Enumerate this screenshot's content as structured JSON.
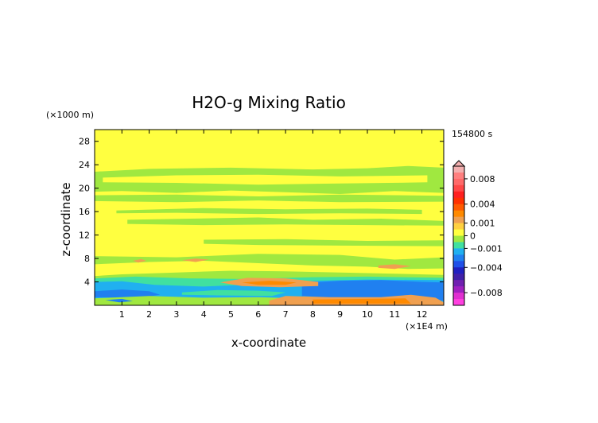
{
  "chart_data": {
    "type": "heatmap",
    "title": "H2O-g Mixing Ratio",
    "xlabel": "x-coordinate",
    "ylabel": "z-coordinate",
    "x_unit_label": "(×1E4 m)",
    "y_unit_label": "(×1000 m)",
    "time_label": "154800 s",
    "xlim": [
      0,
      12.8
    ],
    "ylim": [
      0,
      30
    ],
    "x_ticks": [
      1,
      2,
      3,
      4,
      5,
      6,
      7,
      8,
      9,
      10,
      11,
      12
    ],
    "y_ticks": [
      4,
      8,
      12,
      16,
      20,
      24,
      28
    ],
    "colorbar": {
      "tick_labels": [
        "0.008",
        "0.004",
        "0.001",
        "0",
        "−0.001",
        "−0.004",
        "−0.008"
      ],
      "tick_values": [
        0.008,
        0.004,
        0.001,
        0,
        -0.001,
        -0.004,
        -0.008
      ],
      "levels": [
        {
          "min": 0.009,
          "max": 0.01,
          "color": "#f4b0b0"
        },
        {
          "min": 0.008,
          "max": 0.009,
          "color": "#ff8080"
        },
        {
          "min": 0.007,
          "max": 0.008,
          "color": "#ff6a6a"
        },
        {
          "min": 0.006,
          "max": 0.007,
          "color": "#ff4848"
        },
        {
          "min": 0.005,
          "max": 0.006,
          "color": "#ff2020"
        },
        {
          "min": 0.004,
          "max": 0.005,
          "color": "#ff3000"
        },
        {
          "min": 0.003,
          "max": 0.004,
          "color": "#ff5a00"
        },
        {
          "min": 0.002,
          "max": 0.003,
          "color": "#ff8a00"
        },
        {
          "min": 0.001,
          "max": 0.002,
          "color": "#f0a050"
        },
        {
          "min": 0.0005,
          "max": 0.001,
          "color": "#ffd040"
        },
        {
          "min": 0,
          "max": 0.0005,
          "color": "#ffff40"
        },
        {
          "min": -0.0005,
          "max": 0,
          "color": "#a0e840"
        },
        {
          "min": -0.001,
          "max": -0.0005,
          "color": "#40e0a0"
        },
        {
          "min": -0.002,
          "max": -0.001,
          "color": "#20b0f0"
        },
        {
          "min": -0.003,
          "max": -0.002,
          "color": "#2080f0"
        },
        {
          "min": -0.004,
          "max": -0.003,
          "color": "#2050e8"
        },
        {
          "min": -0.005,
          "max": -0.004,
          "color": "#2020c0"
        },
        {
          "min": -0.006,
          "max": -0.005,
          "color": "#4020a8"
        },
        {
          "min": -0.007,
          "max": -0.006,
          "color": "#7020b0"
        },
        {
          "min": -0.008,
          "max": -0.007,
          "color": "#a020c0"
        },
        {
          "min": -0.009,
          "max": -0.008,
          "color": "#e030d0"
        },
        {
          "min": -0.01,
          "max": -0.009,
          "color": "#ff40e0"
        }
      ]
    },
    "field_colors": {
      "yellow": "#ffff40",
      "green": "#a0e840",
      "cyan": "#40e0a0",
      "light_blue": "#20b0f0",
      "blue": "#2080f0",
      "orange": "#f0a050",
      "dark_orange": "#ff8a00"
    },
    "regions": [
      {
        "color": "green",
        "points": [
          [
            0,
            22.8
          ],
          [
            2,
            23.3
          ],
          [
            5,
            23.5
          ],
          [
            8,
            23.2
          ],
          [
            10,
            23.4
          ],
          [
            11.5,
            23.8
          ],
          [
            12.8,
            23.5
          ],
          [
            12.8,
            19.2
          ],
          [
            11,
            19.5
          ],
          [
            9,
            19.0
          ],
          [
            7,
            19.3
          ],
          [
            5,
            19.6
          ],
          [
            3,
            19.2
          ],
          [
            1,
            19.5
          ],
          [
            0,
            19.4
          ]
        ]
      },
      {
        "color": "yellow",
        "points": [
          [
            0.3,
            21.8
          ],
          [
            3,
            22.2
          ],
          [
            6,
            22.3
          ],
          [
            9,
            22.0
          ],
          [
            12.2,
            22.2
          ],
          [
            12.2,
            21.0
          ],
          [
            9,
            20.8
          ],
          [
            6,
            20.6
          ],
          [
            3,
            20.9
          ],
          [
            0.3,
            21.0
          ]
        ]
      },
      {
        "color": "green",
        "points": [
          [
            0,
            18.8
          ],
          [
            3,
            18.9
          ],
          [
            6,
            18.6
          ],
          [
            9,
            18.9
          ],
          [
            12.8,
            18.7
          ],
          [
            12.8,
            17.7
          ],
          [
            9,
            17.6
          ],
          [
            6,
            17.9
          ],
          [
            3,
            17.6
          ],
          [
            0,
            17.8
          ]
        ]
      },
      {
        "color": "green",
        "points": [
          [
            0.8,
            16.2
          ],
          [
            4,
            16.6
          ],
          [
            7,
            16.4
          ],
          [
            10,
            16.5
          ],
          [
            12,
            16.3
          ],
          [
            12,
            15.6
          ],
          [
            9,
            15.7
          ],
          [
            6,
            15.6
          ],
          [
            3,
            15.8
          ],
          [
            0.8,
            15.7
          ]
        ]
      },
      {
        "color": "green",
        "points": [
          [
            1.2,
            14.6
          ],
          [
            3.5,
            14.8
          ],
          [
            6,
            15.0
          ],
          [
            8,
            14.6
          ],
          [
            10.5,
            14.8
          ],
          [
            12.8,
            14.4
          ],
          [
            12.8,
            13.6
          ],
          [
            10,
            13.7
          ],
          [
            7,
            13.8
          ],
          [
            4,
            13.7
          ],
          [
            1.2,
            13.9
          ]
        ]
      },
      {
        "color": "green",
        "points": [
          [
            4,
            11.2
          ],
          [
            7,
            11.3
          ],
          [
            10,
            11.0
          ],
          [
            12.8,
            11.1
          ],
          [
            12.8,
            10.1
          ],
          [
            9,
            10.2
          ],
          [
            6,
            10.3
          ],
          [
            4,
            10.5
          ]
        ]
      },
      {
        "color": "green",
        "points": [
          [
            0,
            8.4
          ],
          [
            3,
            8.2
          ],
          [
            6,
            8.8
          ],
          [
            9,
            8.6
          ],
          [
            11,
            7.8
          ],
          [
            12.8,
            8.2
          ],
          [
            12.8,
            0
          ],
          [
            0,
            0
          ]
        ]
      },
      {
        "color": "yellow",
        "points": [
          [
            0,
            7.0
          ],
          [
            2,
            7.4
          ],
          [
            4,
            7.6
          ],
          [
            6,
            7.2
          ],
          [
            8,
            6.8
          ],
          [
            10,
            6.6
          ],
          [
            11.5,
            6.2
          ],
          [
            12.8,
            6.3
          ],
          [
            12.8,
            5.2
          ],
          [
            11,
            5.4
          ],
          [
            9,
            5.6
          ],
          [
            7,
            5.8
          ],
          [
            5,
            5.9
          ],
          [
            3,
            5.6
          ],
          [
            1,
            5.3
          ],
          [
            0,
            5.0
          ]
        ]
      },
      {
        "color": "cyan",
        "points": [
          [
            0,
            4.6
          ],
          [
            1.5,
            4.9
          ],
          [
            3.5,
            4.6
          ],
          [
            5.5,
            4.5
          ],
          [
            8,
            4.8
          ],
          [
            10,
            4.9
          ],
          [
            12.8,
            4.7
          ],
          [
            12.8,
            0.3
          ],
          [
            0,
            0.3
          ]
        ]
      },
      {
        "color": "light_blue",
        "points": [
          [
            0,
            4.0
          ],
          [
            1,
            4.1
          ],
          [
            2.2,
            3.5
          ],
          [
            4,
            3.2
          ],
          [
            6,
            3.6
          ],
          [
            8,
            4.2
          ],
          [
            10,
            4.4
          ],
          [
            12.8,
            4.3
          ],
          [
            12.8,
            0.3
          ],
          [
            0,
            0.3
          ]
        ]
      },
      {
        "color": "blue",
        "points": [
          [
            7.6,
            3.8
          ],
          [
            9,
            4.2
          ],
          [
            10.5,
            4.3
          ],
          [
            12,
            4.0
          ],
          [
            12.8,
            3.9
          ],
          [
            12.8,
            0.8
          ],
          [
            11,
            1.0
          ],
          [
            9,
            1.2
          ],
          [
            7.6,
            1.6
          ]
        ]
      },
      {
        "color": "blue",
        "points": [
          [
            0,
            2.4
          ],
          [
            1,
            2.7
          ],
          [
            2,
            2.4
          ],
          [
            2.4,
            1.8
          ],
          [
            1.5,
            1.2
          ],
          [
            0,
            1.4
          ]
        ]
      },
      {
        "color": "green",
        "points": [
          [
            0,
            1.2
          ],
          [
            2,
            1.6
          ],
          [
            4,
            1.3
          ],
          [
            6,
            1.4
          ],
          [
            7.5,
            1.2
          ],
          [
            7.5,
            0.2
          ],
          [
            0,
            0.2
          ]
        ]
      },
      {
        "color": "cyan",
        "points": [
          [
            3.2,
            2.2
          ],
          [
            4.5,
            2.6
          ],
          [
            6,
            2.5
          ],
          [
            7,
            2.2
          ],
          [
            6.5,
            1.6
          ],
          [
            4.5,
            1.7
          ],
          [
            3.2,
            1.8
          ]
        ]
      },
      {
        "color": "orange",
        "points": [
          [
            4.6,
            3.9
          ],
          [
            5.6,
            4.7
          ],
          [
            7,
            4.6
          ],
          [
            8.2,
            4.0
          ],
          [
            8.2,
            3.3
          ],
          [
            6.8,
            3.1
          ],
          [
            5.4,
            3.3
          ]
        ]
      },
      {
        "color": "dark_orange",
        "points": [
          [
            5.4,
            3.9
          ],
          [
            6.4,
            4.2
          ],
          [
            7.4,
            3.9
          ],
          [
            7,
            3.5
          ],
          [
            6,
            3.5
          ]
        ]
      },
      {
        "color": "orange",
        "points": [
          [
            7,
            1.6
          ],
          [
            8.6,
            1.4
          ],
          [
            10.5,
            1.4
          ],
          [
            11.6,
            1.8
          ],
          [
            12.5,
            1.3
          ],
          [
            12.8,
            0.5
          ],
          [
            12.8,
            0
          ],
          [
            6.4,
            0
          ],
          [
            6.4,
            0.8
          ]
        ]
      },
      {
        "color": "dark_orange",
        "points": [
          [
            8,
            1.0
          ],
          [
            10,
            1.1
          ],
          [
            11.4,
            1.2
          ],
          [
            11.6,
            0.3
          ],
          [
            8,
            0.3
          ]
        ]
      },
      {
        "color": "orange",
        "points": [
          [
            10.4,
            6.8
          ],
          [
            11,
            7.0
          ],
          [
            11.6,
            6.7
          ],
          [
            11,
            6.2
          ],
          [
            10.4,
            6.4
          ]
        ]
      },
      {
        "color": "orange",
        "points": [
          [
            3.2,
            7.7
          ],
          [
            3.7,
            8.0
          ],
          [
            4.2,
            7.8
          ],
          [
            3.7,
            7.4
          ]
        ]
      },
      {
        "color": "orange",
        "points": [
          [
            1.4,
            7.6
          ],
          [
            1.7,
            7.9
          ],
          [
            1.9,
            7.6
          ],
          [
            1.6,
            7.3
          ]
        ]
      },
      {
        "color": "blue",
        "points": [
          [
            0.4,
            0.9
          ],
          [
            1,
            1.1
          ],
          [
            1.4,
            0.7
          ],
          [
            0.9,
            0.5
          ]
        ]
      }
    ]
  }
}
